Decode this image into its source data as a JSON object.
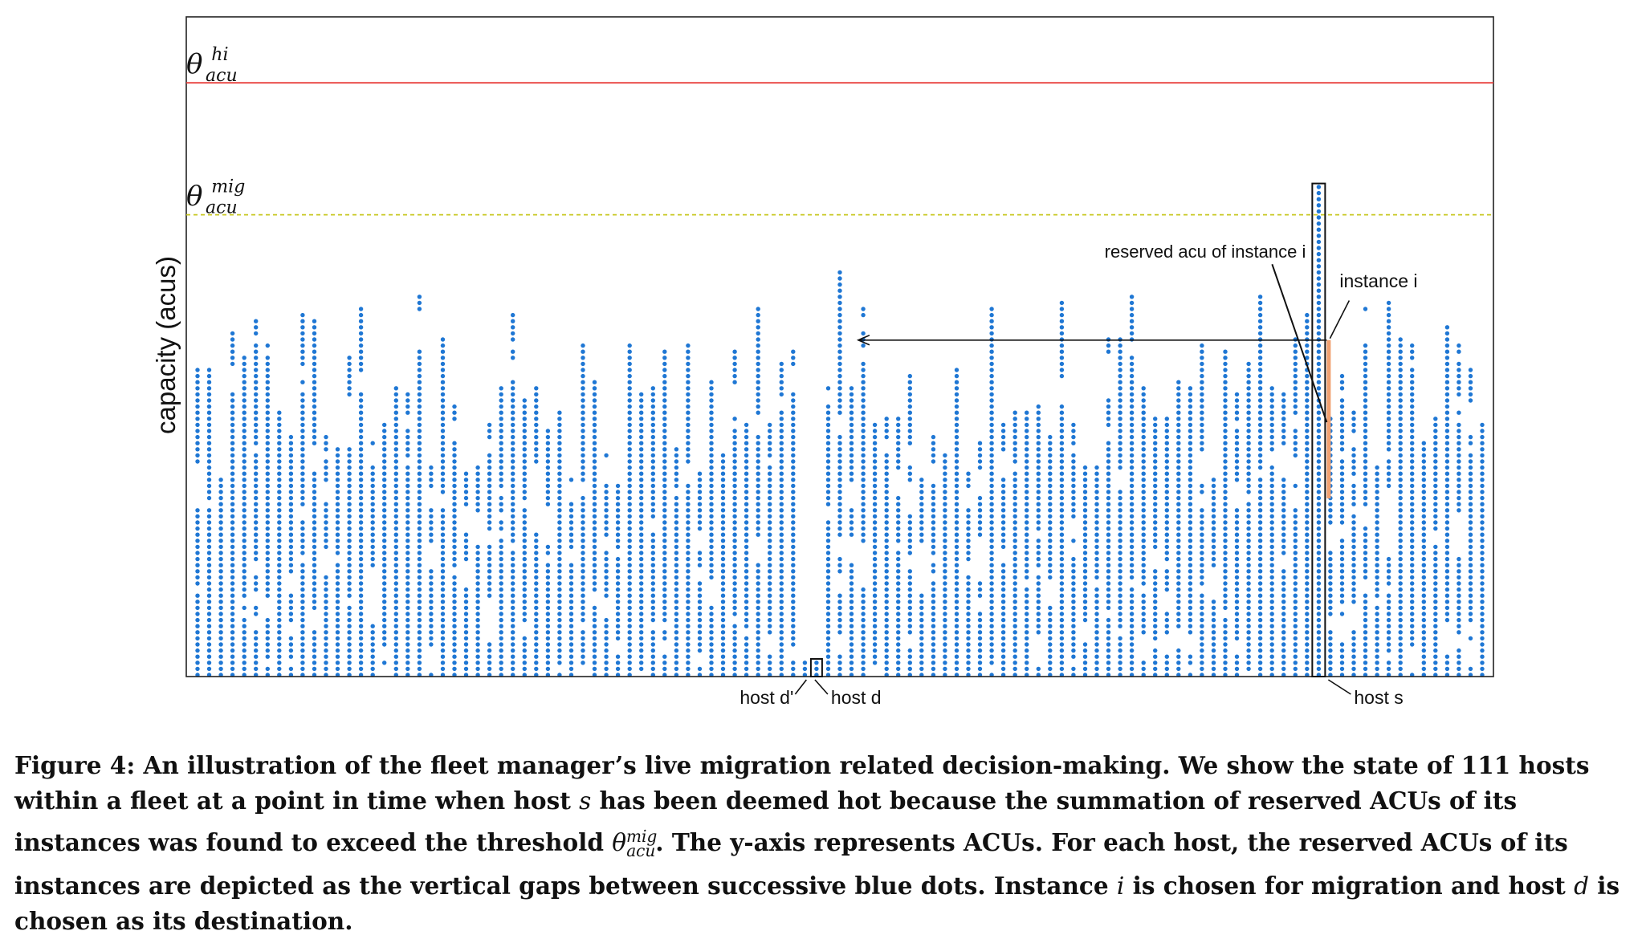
{
  "chart_data": {
    "type": "scatter",
    "ylabel": "capacity (acus)",
    "host_count": 111,
    "thresholds": [
      {
        "symbol": "θ",
        "sup": "hi",
        "sub": "acu",
        "color": "#e8413e",
        "style": "solid",
        "y": 0.9
      },
      {
        "symbol": "θ",
        "sup": "mig",
        "sub": "acu",
        "color": "#c8c820",
        "style": "dashed",
        "y": 0.7
      }
    ],
    "dot_color": "#1f77d4",
    "annotations": {
      "reserved_acu_label": "reserved acu of instance i",
      "instance_label": "instance i",
      "host_s_label": "host s",
      "host_d_label": "host d",
      "host_d_prime_label": "host d'",
      "host_s_index": 96,
      "host_d_index": 53,
      "host_d_prime_index": 52,
      "instance_i_range": [
        0.27,
        0.51
      ],
      "migration_arrow_y": 0.51,
      "instance_color": "#f0a070"
    }
  },
  "caption": {
    "p1": "Figure 4: An illustration of the fleet manager’s live migration related decision-making. We show the state of 111 hosts within a fleet at a point in time when host ",
    "s": "s",
    "p2": " has been deemed hot because the summation of reserved ACUs of its instances was found to exceed the threshold ",
    "theta": "θ",
    "theta_sup": "mig",
    "theta_sub": "acu",
    "p3": ". The y-axis represents ACUs. For each host, the reserved ACUs of its instances are depicted as the vertical gaps between successive blue dots. Instance ",
    "i": "i",
    "p4": " is chosen for migration and host ",
    "d": "d",
    "p5": " is chosen as its destination."
  }
}
